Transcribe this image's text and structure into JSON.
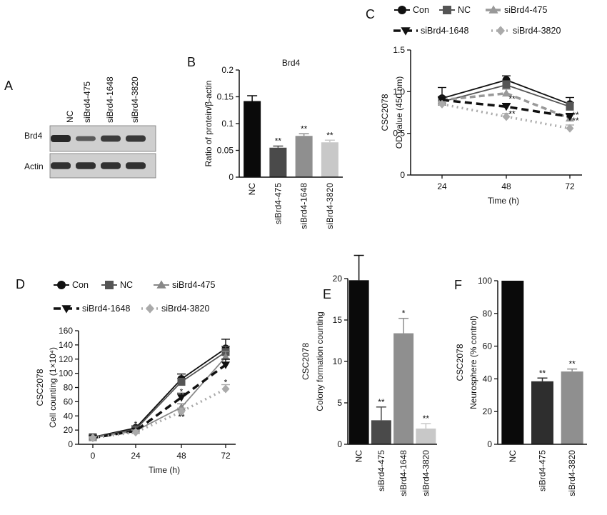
{
  "panels": {
    "A": {
      "letter": "A",
      "lanes": [
        "NC",
        "siBrd4-475",
        "siBrd4-1648",
        "siBrd4-3820"
      ],
      "rows": [
        {
          "label": "Brd4",
          "intensity": [
            1.0,
            0.45,
            0.78,
            0.82
          ]
        },
        {
          "label": "Actin",
          "intensity": [
            0.9,
            0.9,
            0.9,
            0.9
          ]
        }
      ]
    },
    "B": {
      "letter": "B",
      "chart_data": {
        "type": "bar",
        "title": "Brd4",
        "ylabel": "Ratio of protein/β-actin",
        "categories": [
          "NC",
          "siBrd4-475",
          "siBrd4-1648",
          "siBrd4-3820"
        ],
        "values": [
          0.142,
          0.055,
          0.077,
          0.065
        ],
        "errors": [
          0.01,
          0.003,
          0.004,
          0.004
        ],
        "significance": [
          "",
          "**",
          "**",
          "**"
        ],
        "colors": [
          "#0a0a0a",
          "#4a4a4a",
          "#8f8f8f",
          "#c8c8c8"
        ],
        "ylim": [
          0,
          0.2
        ],
        "yticks": [
          "0",
          "0.05",
          "0.1",
          "0.15",
          "0.2"
        ]
      }
    },
    "C": {
      "letter": "C",
      "chart_data": {
        "type": "line",
        "ylabel": "CSC2078",
        "ylabel2": "OD value (450 nm)",
        "xlabel": "Time (h)",
        "x": [
          "24",
          "48",
          "72"
        ],
        "ylim": [
          0,
          1.5
        ],
        "yticks": [
          "0",
          "0.5",
          "1.0",
          "1.5"
        ],
        "series": [
          {
            "name": "Con",
            "values": [
              0.92,
              1.14,
              0.85
            ],
            "errors": [
              0.13,
              0.05,
              0.08
            ],
            "color": "#111111",
            "dash": "",
            "marker": "circle"
          },
          {
            "name": "NC",
            "values": [
              0.88,
              1.08,
              0.82
            ],
            "errors": [
              0.05,
              0.05,
              0.05
            ],
            "color": "#555555",
            "dash": "",
            "marker": "square"
          },
          {
            "name": "siBrd4-475",
            "values": [
              0.9,
              0.98,
              0.68
            ],
            "errors": [
              0.04,
              0.05,
              0.05
            ],
            "color": "#999999",
            "dash": "8,5",
            "marker": "triangle-up"
          },
          {
            "name": "siBrd4-1648",
            "values": [
              0.9,
              0.82,
              0.7
            ],
            "errors": [
              0.04,
              0.04,
              0.04
            ],
            "color": "#111111",
            "dash": "10,6",
            "marker": "triangle-down"
          },
          {
            "name": "siBrd4-3820",
            "values": [
              0.85,
              0.7,
              0.56
            ],
            "errors": [
              0.03,
              0.04,
              0.04
            ],
            "color": "#aaaaaa",
            "dash": "2,5",
            "marker": "diamond"
          }
        ],
        "annotations": [
          {
            "x": "48",
            "y": 0.92,
            "text": "**"
          },
          {
            "x": "48",
            "y": 0.74,
            "text": "**"
          },
          {
            "x": "72",
            "y": 0.73,
            "text": "**"
          },
          {
            "x": "72",
            "y": 0.66,
            "text": "**"
          }
        ]
      }
    },
    "D": {
      "letter": "D",
      "chart_data": {
        "type": "line",
        "ylabel": "CSC2078",
        "ylabel2": "Cell counting (1×10⁴)",
        "xlabel": "Time (h)",
        "x": [
          "0",
          "24",
          "48",
          "72"
        ],
        "ylim": [
          0,
          160
        ],
        "yticks": [
          "0",
          "20",
          "40",
          "60",
          "80",
          "100",
          "120",
          "140",
          "160"
        ],
        "series": [
          {
            "name": "Con",
            "values": [
              10,
              23,
              92,
              135
            ],
            "errors": [
              2,
              3,
              7,
              13
            ],
            "color": "#111111",
            "dash": "",
            "marker": "circle"
          },
          {
            "name": "NC",
            "values": [
              10,
              21,
              88,
              130
            ],
            "errors": [
              2,
              3,
              5,
              8
            ],
            "color": "#555555",
            "dash": "",
            "marker": "square"
          },
          {
            "name": "siBrd4-475",
            "values": [
              9,
              19,
              52,
              123
            ],
            "errors": [
              2,
              3,
              5,
              8
            ],
            "color": "#888888",
            "dash": "",
            "marker": "triangle-up"
          },
          {
            "name": "siBrd4-1648",
            "values": [
              9,
              19,
              66,
              112
            ],
            "errors": [
              2,
              3,
              6,
              8
            ],
            "color": "#111111",
            "dash": "10,6",
            "marker": "triangle-down"
          },
          {
            "name": "siBrd4-3820",
            "values": [
              9,
              17,
              46,
              78
            ],
            "errors": [
              2,
              3,
              5,
              6
            ],
            "color": "#aaaaaa",
            "dash": "2,5",
            "marker": "diamond"
          }
        ],
        "annotations": [
          {
            "x": "24",
            "y": 29,
            "text": "*"
          },
          {
            "x": "48",
            "y": 75,
            "text": "*"
          },
          {
            "x": "48",
            "y": 39,
            "text": "**"
          },
          {
            "x": "72",
            "y": 88,
            "text": "*"
          }
        ]
      }
    },
    "E": {
      "letter": "E",
      "chart_data": {
        "type": "bar",
        "ylabel": "CSC2078",
        "ylabel2": "Colony formation counting",
        "categories": [
          "NC",
          "siBrd4-475",
          "siBrd4-1648",
          "siBrd4-3820"
        ],
        "values": [
          19.8,
          2.9,
          13.4,
          1.9
        ],
        "errors": [
          3.0,
          1.6,
          1.8,
          0.6
        ],
        "significance": [
          "",
          "**",
          "*",
          "**"
        ],
        "colors": [
          "#0a0a0a",
          "#4a4a4a",
          "#8f8f8f",
          "#c8c8c8"
        ],
        "ylim": [
          0,
          20
        ],
        "yticks": [
          "0",
          "5",
          "10",
          "15",
          "20"
        ]
      }
    },
    "F": {
      "letter": "F",
      "chart_data": {
        "type": "bar",
        "ylabel": "CSC2078",
        "ylabel2": "Neurosphere (% control)",
        "categories": [
          "NC",
          "siBrd4-475",
          "siBrd4-3820"
        ],
        "values": [
          100,
          38.5,
          44.5
        ],
        "errors": [
          0,
          2,
          1.5
        ],
        "significance": [
          "",
          "**",
          "**"
        ],
        "colors": [
          "#0a0a0a",
          "#2e2e2e",
          "#8f8f8f"
        ],
        "ylim": [
          0,
          100
        ],
        "yticks": [
          "0",
          "20",
          "40",
          "60",
          "80",
          "100"
        ]
      }
    }
  }
}
